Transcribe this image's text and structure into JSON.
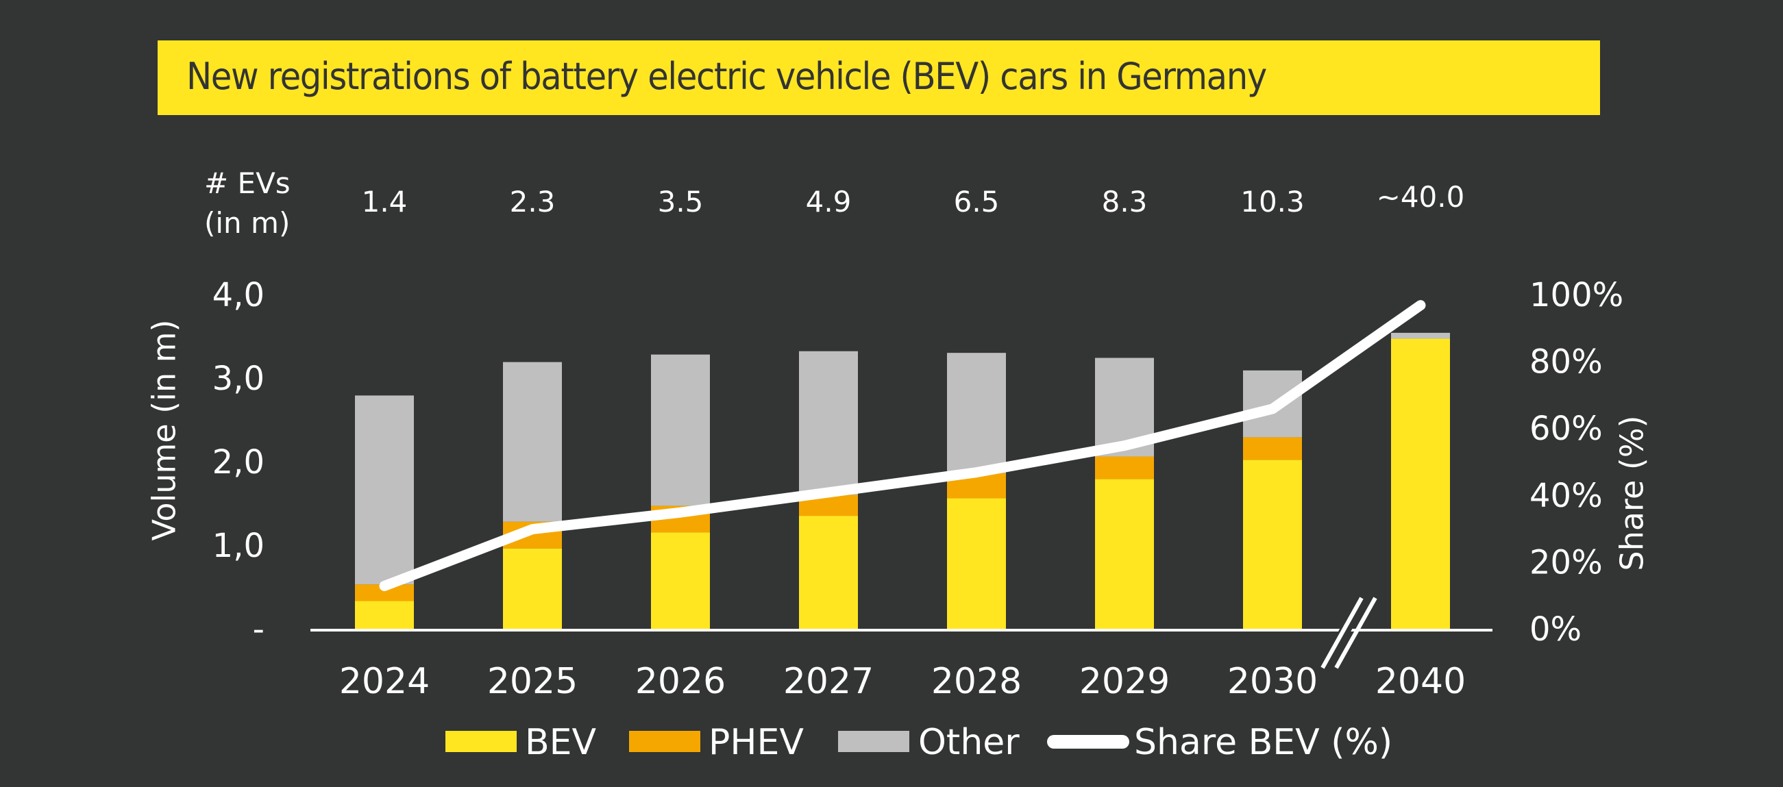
{
  "chart_data": {
    "type": "bar",
    "stacked": true,
    "title": "New registrations of battery electric vehicle (BEV) cars in Germany",
    "categories": [
      "2024",
      "2025",
      "2026",
      "2027",
      "2028",
      "2029",
      "2030",
      "2040"
    ],
    "axis_break_between": [
      "2030",
      "2040"
    ],
    "series": [
      {
        "name": "BEV",
        "color": "#ffe621",
        "values": [
          0.34,
          0.97,
          1.16,
          1.36,
          1.57,
          1.8,
          2.03,
          3.48
        ]
      },
      {
        "name": "PHEV",
        "color": "#f5a700",
        "values": [
          0.2,
          0.32,
          0.32,
          0.25,
          0.3,
          0.27,
          0.27,
          0.0
        ]
      },
      {
        "name": "Other",
        "color": "#bfbfbf",
        "values": [
          2.26,
          1.91,
          1.81,
          1.72,
          1.44,
          1.18,
          0.8,
          0.07
        ]
      }
    ],
    "line_series": {
      "name": "Share BEV (%)",
      "color": "#ffffff",
      "axis": "right",
      "values": [
        13,
        30,
        35,
        41,
        47,
        55,
        66,
        97
      ]
    },
    "ev_stock_header": [
      "# EVs",
      "(in m)"
    ],
    "ev_stock_values": [
      "1.4",
      "2.3",
      "3.5",
      "4.9",
      "6.5",
      "8.3",
      "10.3",
      "~40.0"
    ],
    "ylabel": "Volume (in m)",
    "ylim": [
      0,
      4
    ],
    "yticks": [
      "-",
      "1,0",
      "2,0",
      "3,0",
      "4,0"
    ],
    "y2label": "Share (%)",
    "y2lim": [
      0,
      100
    ],
    "y2ticks": [
      "0%",
      "20%",
      "40%",
      "60%",
      "80%",
      "100%"
    ],
    "grid": false,
    "legend": {
      "position": "bottom",
      "entries": [
        {
          "label": "BEV",
          "kind": "swatch",
          "color": "#ffe621"
        },
        {
          "label": "PHEV",
          "kind": "swatch",
          "color": "#f5a700"
        },
        {
          "label": "Other",
          "kind": "swatch",
          "color": "#bfbfbf"
        },
        {
          "label": "Share BEV (%)",
          "kind": "line",
          "color": "#ffffff"
        }
      ]
    }
  }
}
